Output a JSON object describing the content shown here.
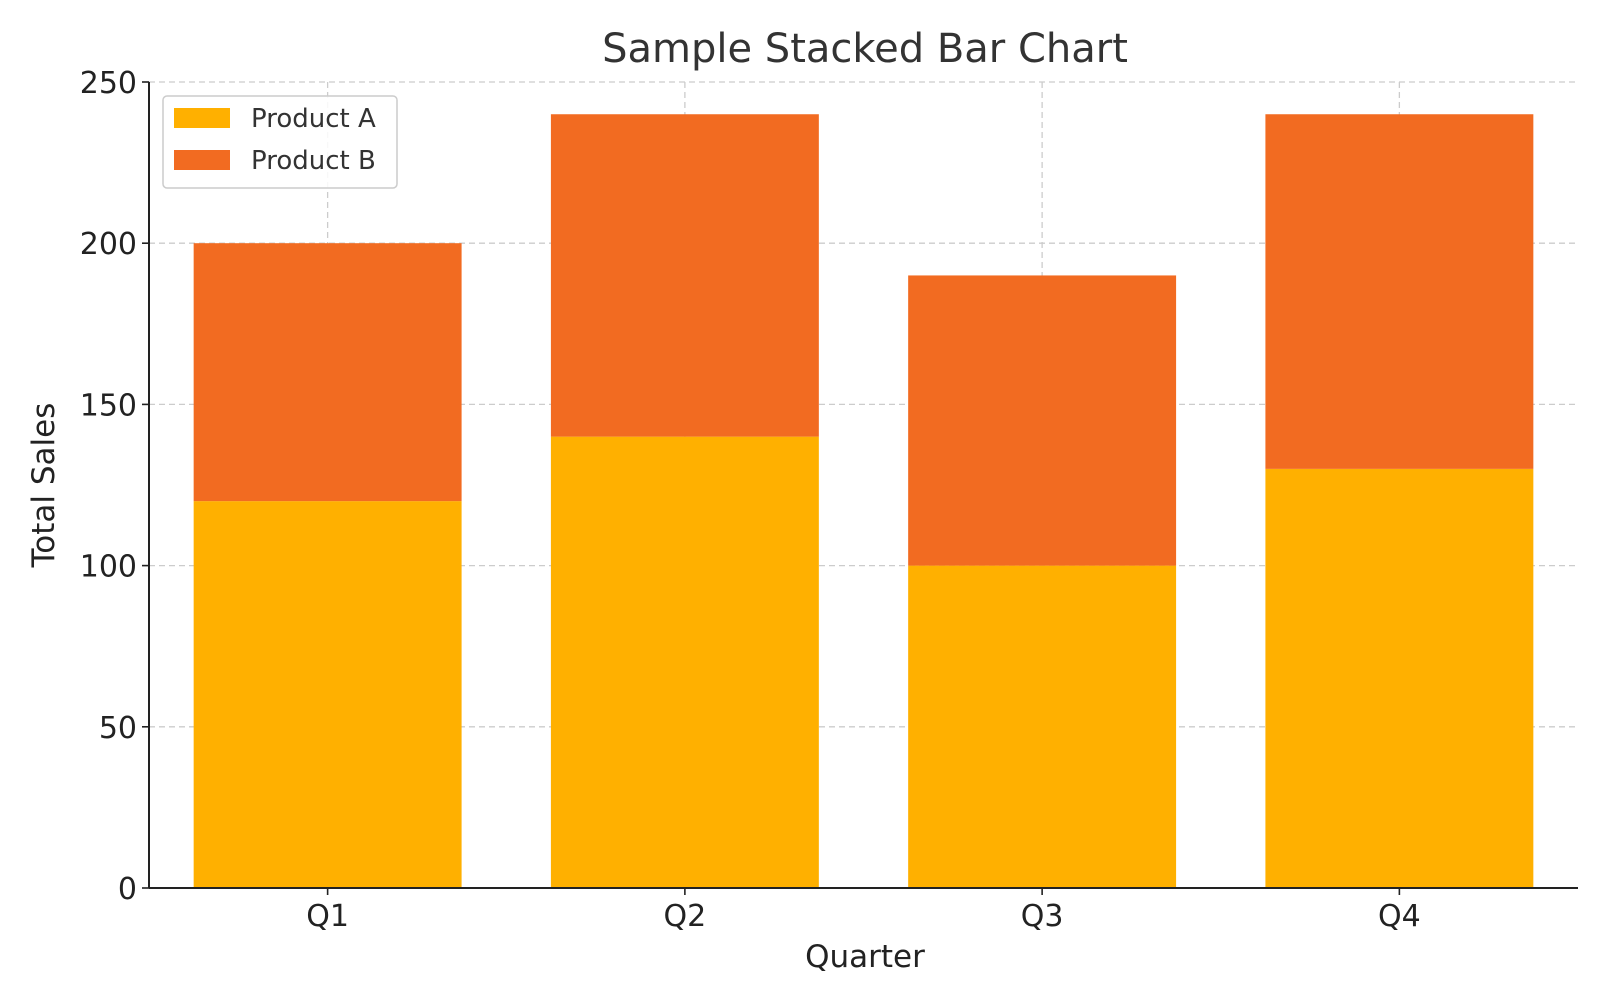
{
  "chart_data": {
    "type": "bar",
    "stacked": true,
    "title": "Sample Stacked Bar Chart",
    "xlabel": "Quarter",
    "ylabel": "Total Sales",
    "categories": [
      "Q1",
      "Q2",
      "Q3",
      "Q4"
    ],
    "series": [
      {
        "name": "Product A",
        "values": [
          120,
          140,
          100,
          130
        ],
        "color": "#FFB000"
      },
      {
        "name": "Product B",
        "values": [
          80,
          100,
          90,
          110
        ],
        "color": "#F26B21"
      }
    ],
    "ylim": [
      0,
      250
    ],
    "yticks": [
      0,
      50,
      100,
      150,
      200,
      250
    ],
    "grid": true,
    "legend_position": "top-left"
  }
}
